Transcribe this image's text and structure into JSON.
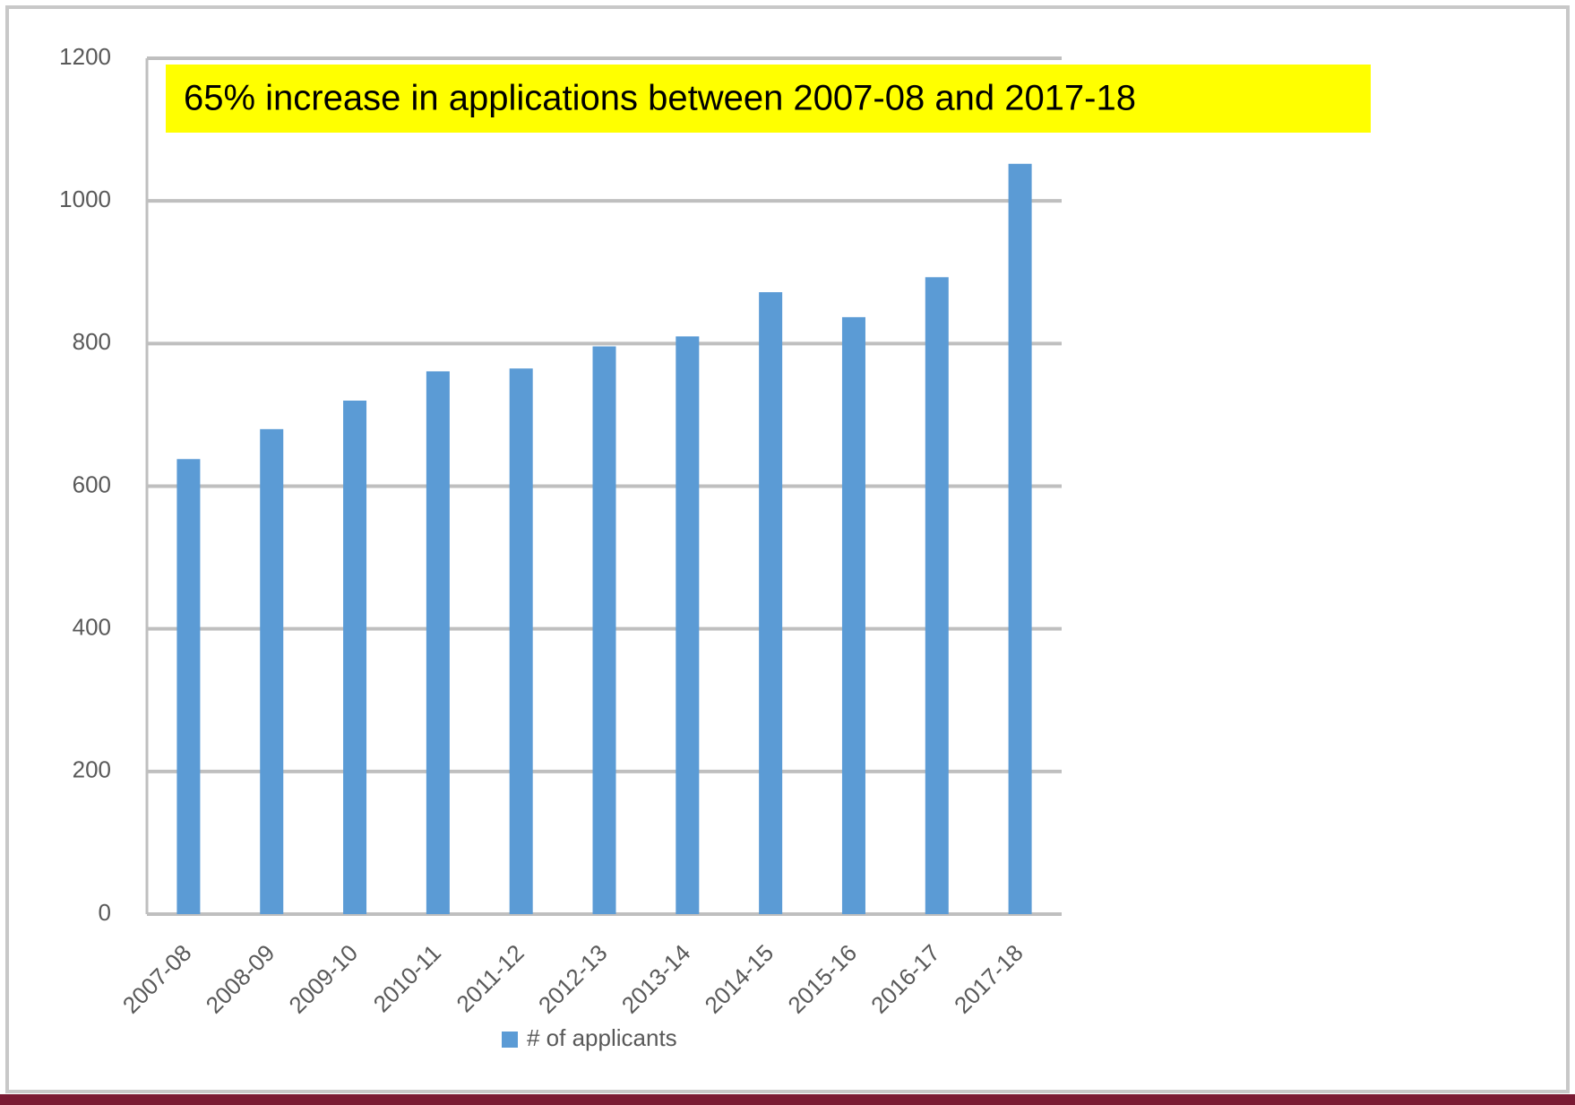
{
  "chart_data": {
    "type": "bar",
    "annotation": "65% increase in applications between 2007-08 and 2017-18",
    "categories": [
      "2007-08",
      "2008-09",
      "2009-10",
      "2010-11",
      "2011-12",
      "2012-13",
      "2013-14",
      "2014-15",
      "2015-16",
      "2016-17",
      "2017-18"
    ],
    "series": [
      {
        "name": "# of applicants",
        "color": "#5b9bd5",
        "values": [
          638,
          680,
          720,
          761,
          765,
          796,
          810,
          872,
          837,
          893,
          1052
        ]
      }
    ],
    "ylim": [
      0,
      1200
    ],
    "yticks": [
      0,
      200,
      400,
      600,
      800,
      1000,
      1200
    ],
    "grid": true,
    "legend": "bottom"
  }
}
